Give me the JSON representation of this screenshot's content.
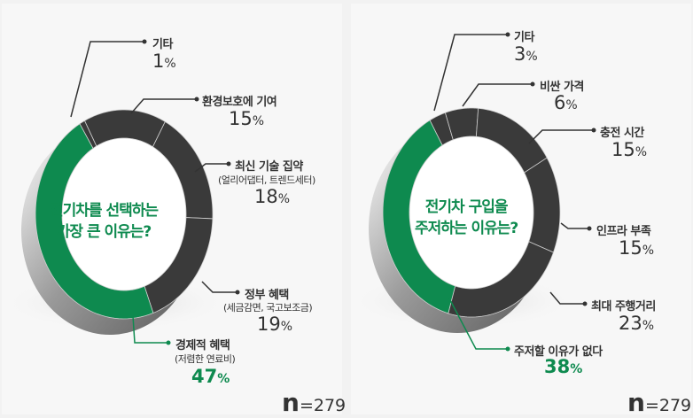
{
  "chart_data": [
    {
      "type": "pie",
      "donut": true,
      "title": "전기차를 선택하는 가장 큰 이유는?",
      "slices": [
        {
          "label": "기타",
          "sub": "",
          "value": 1,
          "color": "#3a3a3a"
        },
        {
          "label": "환경보호에 기여",
          "sub": "",
          "value": 15,
          "color": "#3a3a3a"
        },
        {
          "label": "최신 기술 집약",
          "sub": "(얼리어댑터, 트렌드세터)",
          "value": 18,
          "color": "#3a3a3a"
        },
        {
          "label": "정부 혜택",
          "sub": "(세금감면, 국고보조금)",
          "value": 19,
          "color": "#3a3a3a"
        },
        {
          "label": "경제적 혜택",
          "sub": "(저렴한 연료비)",
          "value": 47,
          "color": "#0e8a4f"
        }
      ],
      "n_prefix": "n",
      "n_value": "=279"
    },
    {
      "type": "pie",
      "donut": true,
      "title": "전기차 구입을 주저하는 이유는?",
      "slices": [
        {
          "label": "기타",
          "value": 3,
          "color": "#3a3a3a"
        },
        {
          "label": "비싼 가격",
          "value": 6,
          "color": "#3a3a3a"
        },
        {
          "label": "충전 시간",
          "value": 15,
          "color": "#3a3a3a"
        },
        {
          "label": "인프라 부족",
          "value": 15,
          "color": "#3a3a3a"
        },
        {
          "label": "최대 주행거리",
          "value": 23,
          "color": "#3a3a3a"
        },
        {
          "label": "주저할 이유가 없다",
          "value": 38,
          "color": "#0e8a4f"
        }
      ],
      "n_prefix": "n",
      "n_value": "=279"
    }
  ],
  "titles": [
    [
      "전기차를 선택하는",
      "가장 큰 이유는?"
    ],
    [
      "전기차 구입을",
      "주저하는 이유는?"
    ]
  ],
  "unit": "%",
  "colors": {
    "accent": "#0e8a4f",
    "dark": "#3a3a3a"
  }
}
